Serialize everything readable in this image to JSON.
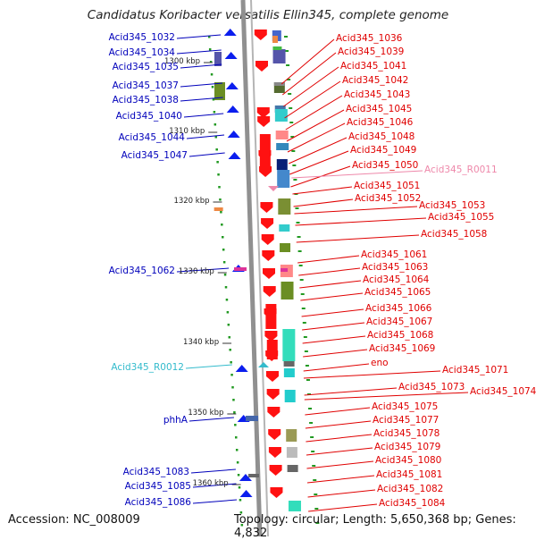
{
  "title": "Candidatus Koribacter versatilis Ellin345, complete genome",
  "accession": "Accession: NC_008009",
  "topology": "Topology: circular; Length: 5,650,368 bp; Genes: 4,832",
  "colors": {
    "left_label": "#0000bb",
    "right_label": "#e00000",
    "rna_left": "#33bbcc",
    "rna_right": "#ee88aa",
    "backbone": "#909090",
    "forward_gene": "#ff1111",
    "reverse_gene": "#0b1eee",
    "scale_dot": "#229922"
  },
  "scale_labels": [
    "1300 kbp",
    "1310 kbp",
    "1320 kbp",
    "1330 kbp",
    "1340 kbp",
    "1350 kbp",
    "1360 kbp"
  ],
  "left_labels": [
    "Acid345_1032",
    "Acid345_1034",
    "Acid345_1035",
    "Acid345_1037",
    "Acid345_1038",
    "Acid345_1040",
    "Acid345_1044",
    "Acid345_1047",
    "Acid345_1062",
    "Acid345_R0012",
    "phhA",
    "Acid345_1083",
    "Acid345_1085",
    "Acid345_1086"
  ],
  "right_labels": [
    "Acid345_1036",
    "Acid345_1039",
    "Acid345_1041",
    "Acid345_1042",
    "Acid345_1043",
    "Acid345_1045",
    "Acid345_1046",
    "Acid345_1048",
    "Acid345_1049",
    "Acid345_1050",
    "Acid345_R0011",
    "Acid345_1051",
    "Acid345_1052",
    "Acid345_1053",
    "Acid345_1055",
    "Acid345_1058",
    "Acid345_1061",
    "Acid345_1063",
    "Acid345_1064",
    "Acid345_1065",
    "Acid345_1066",
    "Acid345_1067",
    "Acid345_1068",
    "Acid345_1069",
    "eno",
    "Acid345_1071",
    "Acid345_1073",
    "Acid345_1074",
    "Acid345_1075",
    "Acid345_1077",
    "Acid345_1078",
    "Acid345_1079",
    "Acid345_1080",
    "Acid345_1081",
    "Acid345_1082",
    "Acid345_1084"
  ]
}
